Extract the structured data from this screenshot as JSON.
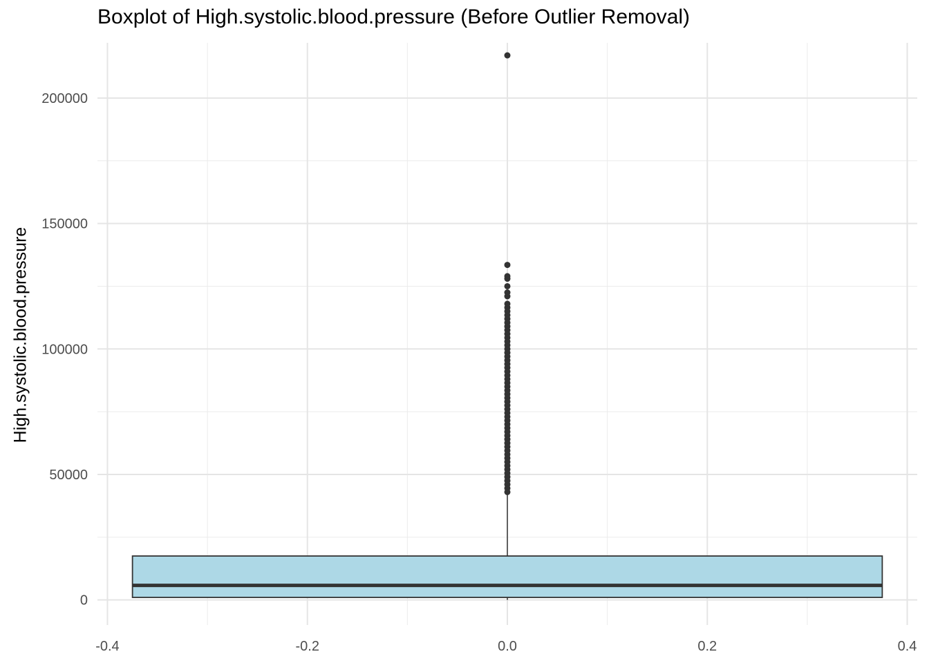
{
  "chart_data": {
    "type": "boxplot",
    "title": "Boxplot of High.systolic.blood.pressure (Before Outlier Removal)",
    "xlabel": "",
    "ylabel": "High.systolic.blood.pressure",
    "xlim": [
      -0.41,
      0.41
    ],
    "ylim": [
      -10000,
      222000
    ],
    "x_ticks": [
      -0.4,
      -0.2,
      0.0,
      0.2,
      0.4
    ],
    "x_tick_labels": [
      "-0.4",
      "-0.2",
      "0.0",
      "0.2",
      "0.4"
    ],
    "y_ticks": [
      0,
      50000,
      100000,
      150000,
      200000
    ],
    "y_tick_labels": [
      "0",
      "50000",
      "100000",
      "150000",
      "200000"
    ],
    "grid": true,
    "box": {
      "x_center": 0.0,
      "x_min": -0.375,
      "x_max": 0.375,
      "min": 0,
      "q1": 1000,
      "median": 5800,
      "q3": 17500,
      "whisker_low": 0,
      "whisker_high": 42500,
      "fill": "#ADD8E6",
      "stroke": "#333333"
    },
    "outliers": [
      217000,
      133500,
      129000,
      128000,
      125000,
      122500,
      121000,
      118000,
      116500,
      115000,
      113500,
      112000,
      110500,
      109000,
      107500,
      106000,
      104500,
      103000,
      101500,
      100000,
      98500,
      97000,
      95500,
      94000,
      92500,
      91000,
      89500,
      88000,
      86500,
      85000,
      83500,
      82000,
      80500,
      79000,
      77500,
      76000,
      74500,
      73000,
      71500,
      70000,
      68500,
      67000,
      65500,
      64000,
      62500,
      61000,
      59500,
      58000,
      56500,
      55000,
      53500,
      52000,
      50500,
      49000,
      47500,
      46000,
      44500,
      43000
    ]
  }
}
